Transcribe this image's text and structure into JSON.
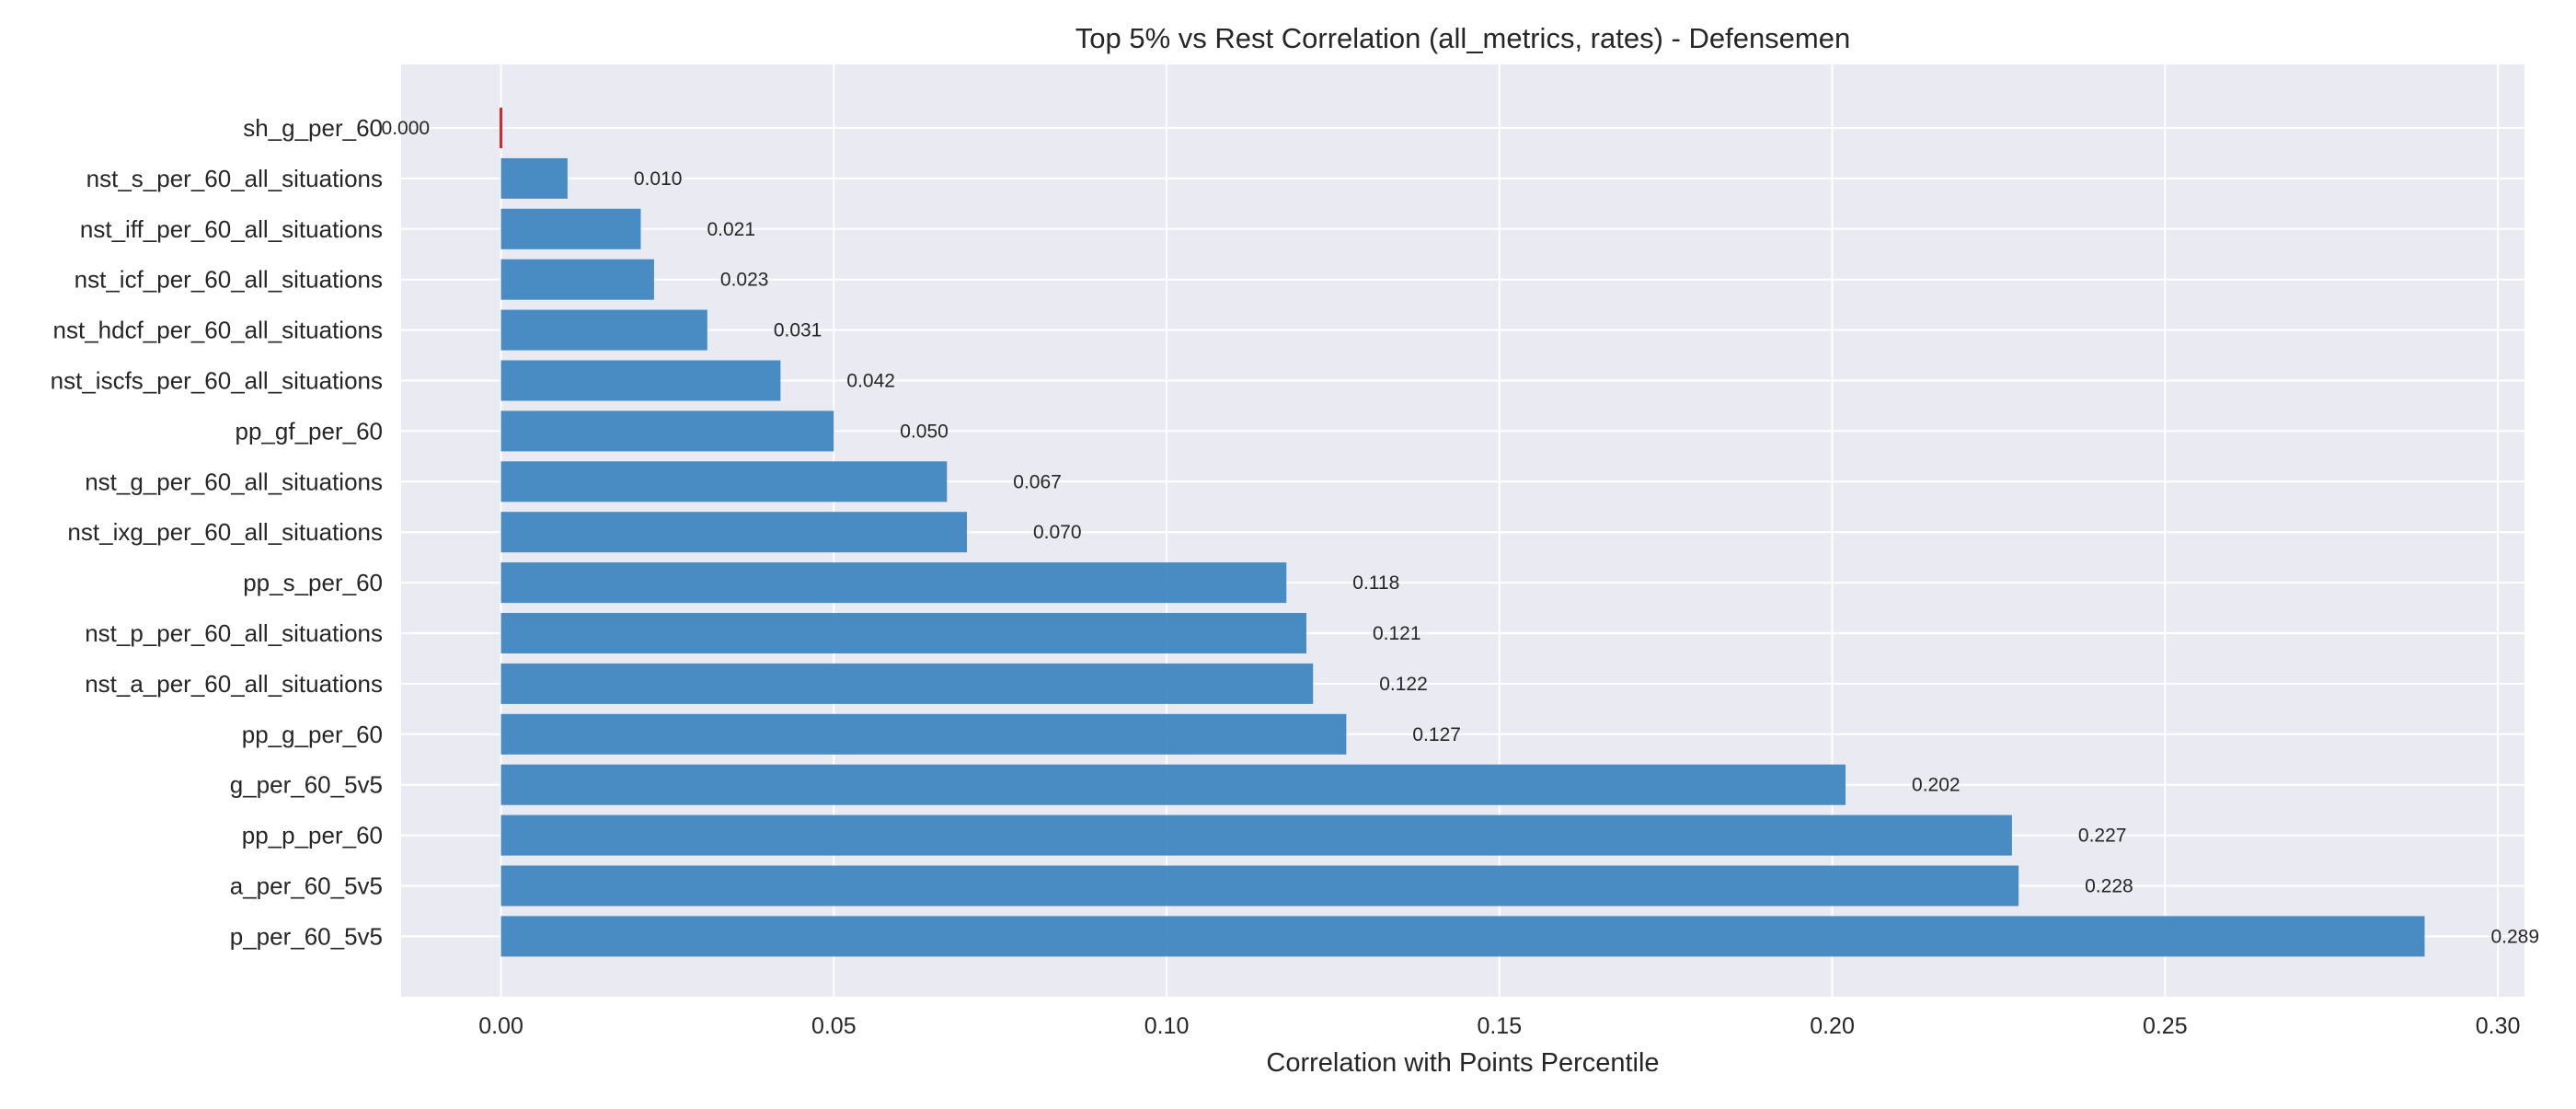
{
  "chart_data": {
    "type": "bar",
    "orientation": "horizontal",
    "title": "Top 5% vs Rest Correlation (all_metrics, rates) - Defensemen",
    "xlabel": "Correlation with Points Percentile",
    "ylabel": "",
    "xlim": [
      -0.015,
      0.304
    ],
    "xticks": [
      0.0,
      0.05,
      0.1,
      0.15,
      0.2,
      0.25,
      0.3
    ],
    "xtick_labels": [
      "0.00",
      "0.05",
      "0.10",
      "0.15",
      "0.20",
      "0.25",
      "0.30"
    ],
    "grid": true,
    "categories": [
      "sh_g_per_60",
      "nst_s_per_60_all_situations",
      "nst_iff_per_60_all_situations",
      "nst_icf_per_60_all_situations",
      "nst_hdcf_per_60_all_situations",
      "nst_iscfs_per_60_all_situations",
      "pp_gf_per_60",
      "nst_g_per_60_all_situations",
      "nst_ixg_per_60_all_situations",
      "pp_s_per_60",
      "nst_p_per_60_all_situations",
      "nst_a_per_60_all_situations",
      "pp_g_per_60",
      "g_per_60_5v5",
      "pp_p_per_60",
      "a_per_60_5v5",
      "p_per_60_5v5"
    ],
    "values": [
      0.0,
      0.01,
      0.021,
      0.023,
      0.031,
      0.042,
      0.05,
      0.067,
      0.07,
      0.118,
      0.121,
      0.122,
      0.127,
      0.202,
      0.227,
      0.228,
      0.289
    ],
    "value_labels": [
      "0.000",
      "0.010",
      "0.021",
      "0.023",
      "0.031",
      "0.042",
      "0.050",
      "0.067",
      "0.070",
      "0.118",
      "0.121",
      "0.122",
      "0.127",
      "0.202",
      "0.227",
      "0.228",
      "0.289"
    ],
    "colors": {
      "positive": "#3f87c0",
      "zero": "#d62728",
      "background": "#eaeaf2",
      "grid": "#ffffff"
    }
  }
}
